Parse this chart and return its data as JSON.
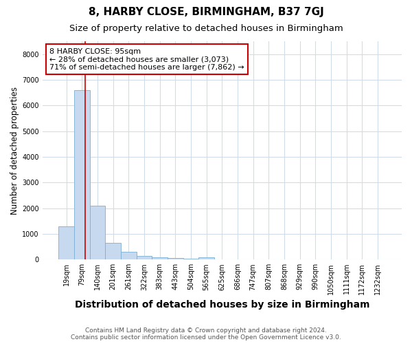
{
  "title": "8, HARBY CLOSE, BIRMINGHAM, B37 7GJ",
  "subtitle": "Size of property relative to detached houses in Birmingham",
  "xlabel": "Distribution of detached houses by size in Birmingham",
  "ylabel": "Number of detached properties",
  "footnote": "Contains HM Land Registry data © Crown copyright and database right 2024.\nContains public sector information licensed under the Open Government Licence v3.0.",
  "categories": [
    "19sqm",
    "79sqm",
    "140sqm",
    "201sqm",
    "261sqm",
    "322sqm",
    "383sqm",
    "443sqm",
    "504sqm",
    "565sqm",
    "625sqm",
    "686sqm",
    "747sqm",
    "807sqm",
    "868sqm",
    "929sqm",
    "990sqm",
    "1050sqm",
    "1111sqm",
    "1172sqm",
    "1232sqm"
  ],
  "values": [
    1300,
    6600,
    2100,
    640,
    300,
    130,
    90,
    55,
    30,
    90,
    0,
    0,
    0,
    0,
    0,
    0,
    0,
    0,
    0,
    0,
    0
  ],
  "bar_color": "#c6d9ee",
  "bar_edge_color": "#7bafd4",
  "ylim": [
    0,
    8500
  ],
  "yticks": [
    0,
    1000,
    2000,
    3000,
    4000,
    5000,
    6000,
    7000,
    8000
  ],
  "property_line_color": "#cc0000",
  "property_line_x": 1.18,
  "annotation_text": "8 HARBY CLOSE: 95sqm\n← 28% of detached houses are smaller (3,073)\n71% of semi-detached houses are larger (7,862) →",
  "annotation_box_facecolor": "#ffffff",
  "annotation_box_edgecolor": "#cc0000",
  "background_color": "#ffffff",
  "plot_background_color": "#ffffff",
  "grid_color": "#d0dce8",
  "title_fontsize": 11,
  "subtitle_fontsize": 9.5,
  "xlabel_fontsize": 10,
  "ylabel_fontsize": 8.5,
  "tick_fontsize": 7,
  "annotation_fontsize": 8,
  "footnote_fontsize": 6.5
}
